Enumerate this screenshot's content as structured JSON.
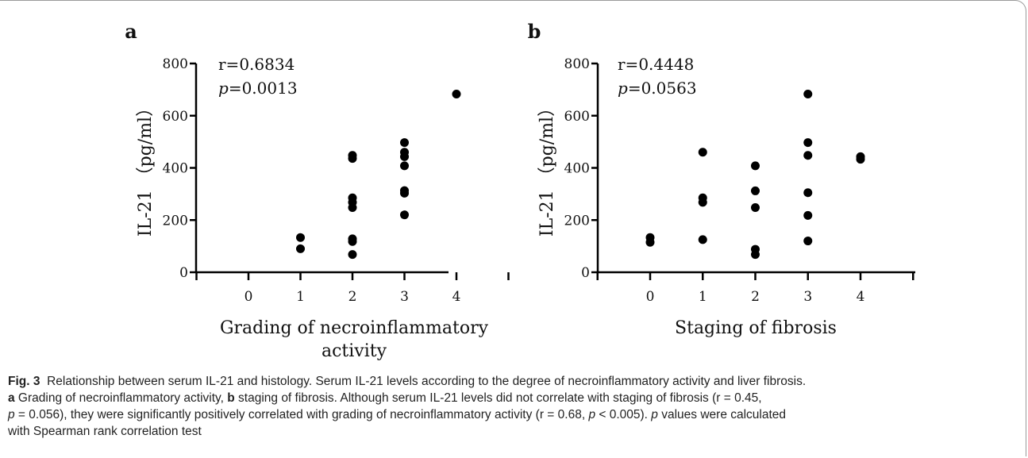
{
  "chart_data": [
    {
      "type": "scatter",
      "panel_label": "a",
      "xlabel_lines": [
        "Grading of necroinflammatory",
        "activity"
      ],
      "ylabel": "IL-21 （pg/ml）",
      "xticks": [
        0,
        1,
        2,
        3,
        4
      ],
      "yticks": [
        0,
        200,
        400,
        600,
        800
      ],
      "xlim": [
        -1,
        5
      ],
      "ylim": [
        0,
        800
      ],
      "annotation": {
        "r": "r=0.6834",
        "p_italic": "p",
        "p_value": "=0.0013"
      },
      "points": [
        [
          1,
          133
        ],
        [
          1,
          90
        ],
        [
          2,
          448
        ],
        [
          2,
          436
        ],
        [
          2,
          285
        ],
        [
          2,
          268
        ],
        [
          2,
          248
        ],
        [
          2,
          128
        ],
        [
          2,
          118
        ],
        [
          2,
          68
        ],
        [
          3,
          497
        ],
        [
          3,
          460
        ],
        [
          3,
          443
        ],
        [
          3,
          408
        ],
        [
          3,
          313
        ],
        [
          3,
          303
        ],
        [
          3,
          220
        ],
        [
          4,
          683
        ]
      ]
    },
    {
      "type": "scatter",
      "panel_label": "b",
      "xlabel_lines": [
        "Staging of fibrosis"
      ],
      "ylabel": "IL-21 （pg/ml）",
      "xticks": [
        0,
        1,
        2,
        3,
        4
      ],
      "yticks": [
        0,
        200,
        400,
        600,
        800
      ],
      "xlim": [
        -1,
        5
      ],
      "ylim": [
        0,
        800
      ],
      "annotation": {
        "r": "r=0.4448",
        "p_italic": "p",
        "p_value": "=0.0563"
      },
      "points": [
        [
          0,
          133
        ],
        [
          0,
          115
        ],
        [
          1,
          460
        ],
        [
          1,
          285
        ],
        [
          1,
          268
        ],
        [
          1,
          125
        ],
        [
          2,
          408
        ],
        [
          2,
          312
        ],
        [
          2,
          248
        ],
        [
          2,
          88
        ],
        [
          2,
          68
        ],
        [
          3,
          683
        ],
        [
          3,
          497
        ],
        [
          3,
          448
        ],
        [
          3,
          305
        ],
        [
          3,
          218
        ],
        [
          3,
          120
        ],
        [
          4,
          443
        ],
        [
          4,
          433
        ]
      ]
    }
  ],
  "caption": {
    "fig_label": "Fig. 3",
    "title": "Relationship between serum IL-21 and histology. Serum IL-21 levels according to the degree of necroinflammatory activity and liver fibrosis.",
    "a_label": "a",
    "a_text": " Grading of necroinflammatory activity, ",
    "b_label": "b",
    "b_text": " staging of fibrosis. Although serum IL-21 levels did not correlate with staging of fibrosis (r = 0.45,",
    "line3_p1": "p",
    "line3_mid": " = 0.056), they were significantly positively correlated with grading of necroinflammatory activity (r = 0.68, ",
    "line3_p2": "p",
    "line3_end": " < 0.005). ",
    "line3_p3": "p",
    "line3_tail": " values were calculated",
    "line4": "with Spearman rank correlation test"
  }
}
